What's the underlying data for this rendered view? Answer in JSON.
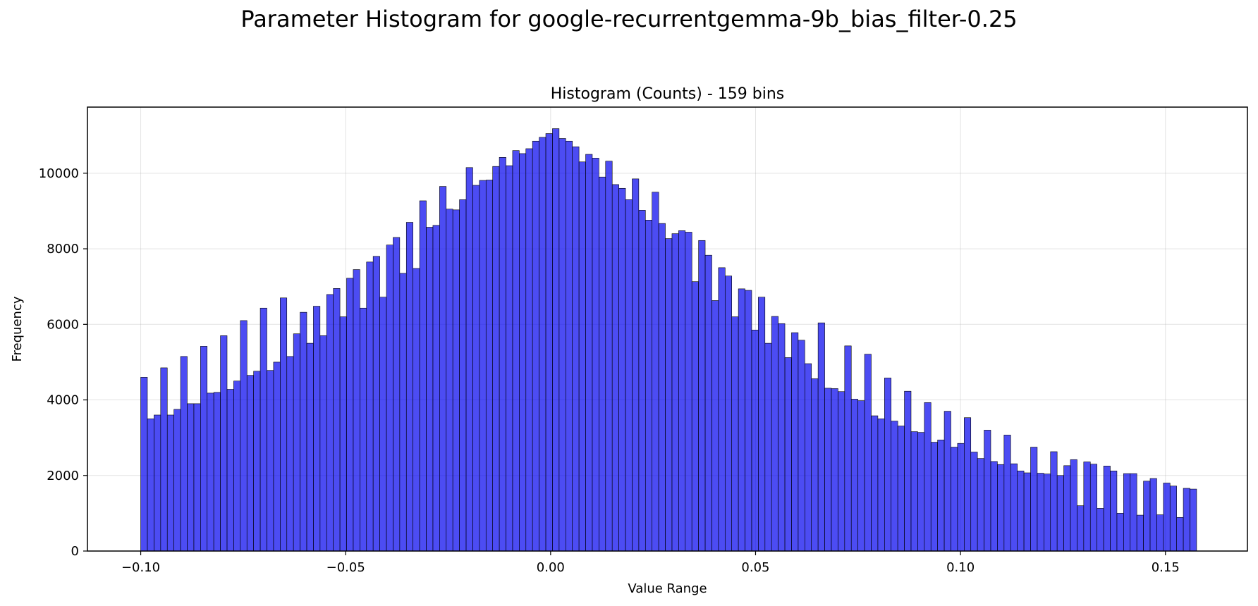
{
  "figure": {
    "suptitle": "Parameter Histogram for google-recurrentgemma-9b_bias_filter-0.25"
  },
  "chart_data": {
    "type": "bar",
    "subtype": "histogram",
    "title": "Histogram (Counts) - 159 bins",
    "xlabel": "Value Range",
    "ylabel": "Frequency",
    "xlim": [
      -0.113,
      0.17
    ],
    "ylim": [
      0,
      11750
    ],
    "x_ticks": [
      -0.1,
      -0.05,
      0.0,
      0.05,
      0.1,
      0.15
    ],
    "x_tick_labels": [
      "−0.10",
      "−0.05",
      "0.00",
      "0.05",
      "0.10",
      "0.15"
    ],
    "y_ticks": [
      0,
      2000,
      4000,
      6000,
      8000,
      10000
    ],
    "y_tick_labels": [
      "0",
      "2000",
      "4000",
      "6000",
      "8000",
      "10000"
    ],
    "grid": true,
    "bar_color": "#0000ee",
    "bar_edge_color": "#000000",
    "bin_start": -0.1,
    "bin_end": 0.1576,
    "bins": 159,
    "values": [
      4600,
      3500,
      3600,
      4850,
      3600,
      3750,
      5150,
      3900,
      3900,
      5420,
      4180,
      4200,
      5700,
      4280,
      4500,
      6100,
      4650,
      4760,
      6430,
      4780,
      5000,
      6700,
      5150,
      5750,
      6320,
      5500,
      6480,
      5700,
      6790,
      6950,
      6200,
      7220,
      7450,
      6430,
      7650,
      7800,
      6720,
      8100,
      8300,
      7350,
      8700,
      7480,
      9270,
      8570,
      8620,
      9650,
      9050,
      9030,
      9300,
      10150,
      9680,
      9810,
      9820,
      10180,
      10420,
      10200,
      10600,
      10520,
      10650,
      10850,
      10950,
      11050,
      11180,
      10920,
      10850,
      10700,
      10300,
      10500,
      10400,
      9900,
      10320,
      9700,
      9600,
      9300,
      9850,
      9020,
      8760,
      9500,
      8670,
      8270,
      8400,
      8480,
      8440,
      7130,
      8220,
      7830,
      6630,
      7500,
      7280,
      6200,
      6940,
      6900,
      5850,
      6720,
      5500,
      6210,
      6020,
      5120,
      5780,
      5580,
      4960,
      4560,
      6040,
      4310,
      4300,
      4220,
      5430,
      4020,
      3980,
      5210,
      3580,
      3500,
      4580,
      3440,
      3310,
      4230,
      3160,
      3140,
      3930,
      2880,
      2940,
      3700,
      2750,
      2850,
      3530,
      2620,
      2450,
      3200,
      2370,
      2290,
      3070,
      2310,
      2120,
      2070,
      2750,
      2060,
      2040,
      2630,
      2000,
      2260,
      2420,
      1200,
      2360,
      2300,
      1130,
      2250,
      2120,
      1000,
      2050,
      2050,
      950,
      1850,
      1920,
      960,
      1800,
      1720,
      890,
      1660,
      1640
    ]
  }
}
